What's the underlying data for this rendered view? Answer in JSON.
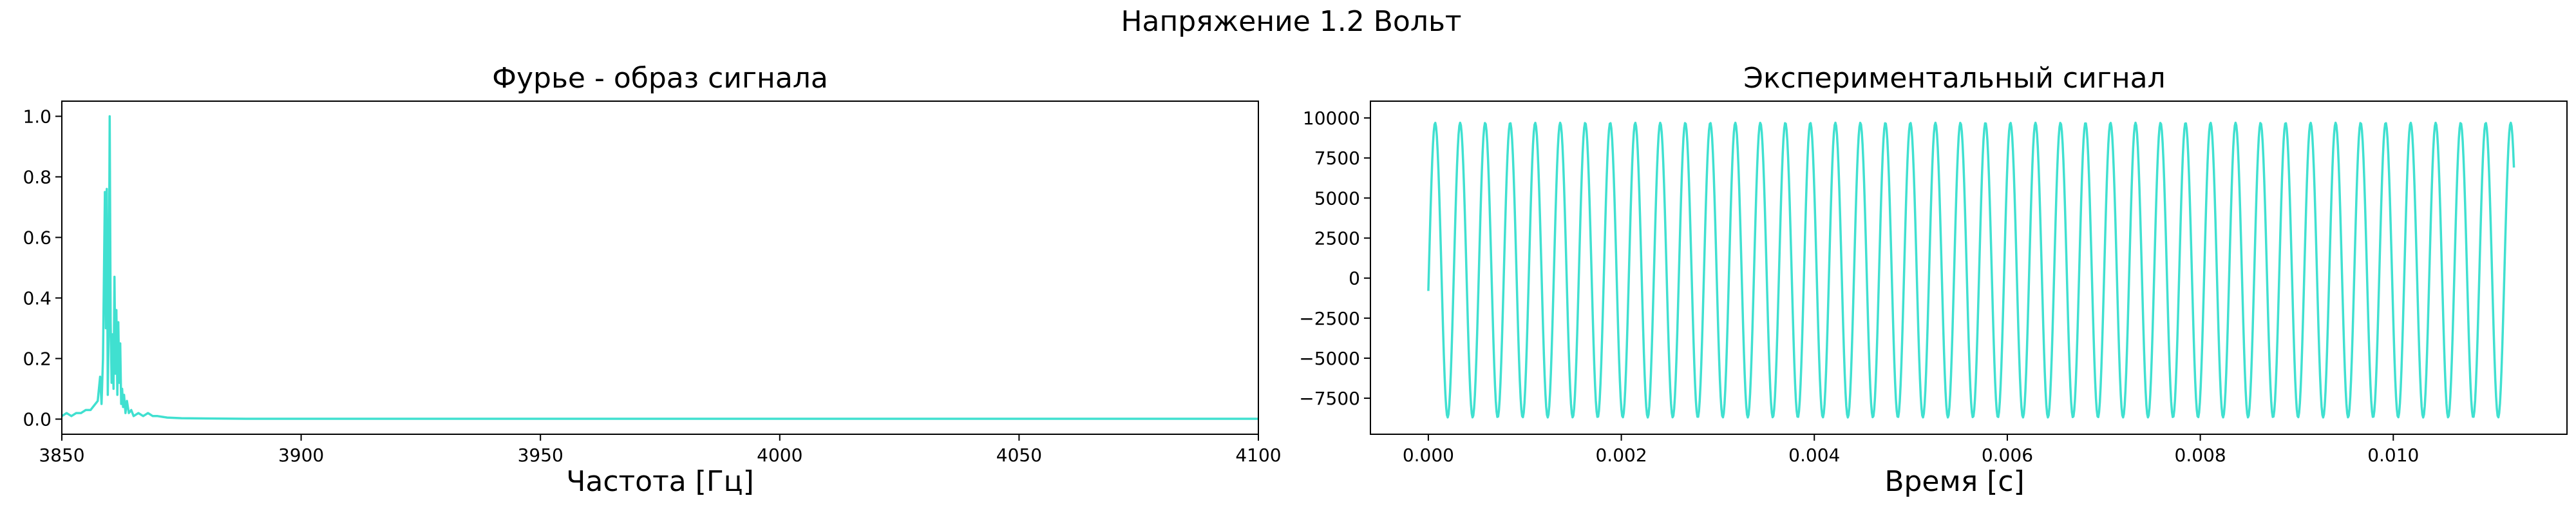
{
  "figure": {
    "title": "Напряжение 1.2 Вольт"
  },
  "colors": {
    "line": "#40e0d0",
    "axis": "#000000",
    "background": "#ffffff"
  },
  "chart_data": [
    {
      "type": "line",
      "title": "Фурье - образ сигнала",
      "xlabel": "Частота [Гц]",
      "ylabel": "",
      "xlim": [
        3850,
        4100
      ],
      "ylim": [
        -0.05,
        1.05
      ],
      "xticks": [
        3850,
        3900,
        3950,
        4000,
        4050,
        4100
      ],
      "xtick_labels": [
        "3850",
        "3900",
        "3950",
        "4000",
        "4050",
        "4100"
      ],
      "yticks": [
        0.0,
        0.2,
        0.4,
        0.6,
        0.8,
        1.0
      ],
      "ytick_labels": [
        "0.0",
        "0.2",
        "0.4",
        "0.6",
        "0.8",
        "1.0"
      ],
      "grid": false,
      "series": [
        {
          "x": [
            3850,
            3851,
            3852,
            3853,
            3854,
            3855,
            3856,
            3857,
            3857.5,
            3858,
            3858.3,
            3858.6,
            3859,
            3859.2,
            3859.4,
            3859.6,
            3859.8,
            3860,
            3860.2,
            3860.4,
            3860.6,
            3860.8,
            3861,
            3861.2,
            3861.4,
            3861.6,
            3861.8,
            3862,
            3862.2,
            3862.4,
            3862.6,
            3862.8,
            3863,
            3863.3,
            3863.6,
            3864,
            3864.5,
            3865,
            3866,
            3867,
            3868,
            3869,
            3870,
            3872,
            3875,
            3880,
            3890,
            3900,
            3950,
            4000,
            4050,
            4100
          ],
          "y": [
            0.01,
            0.02,
            0.01,
            0.02,
            0.02,
            0.03,
            0.03,
            0.05,
            0.06,
            0.14,
            0.05,
            0.2,
            0.75,
            0.3,
            0.76,
            0.08,
            0.3,
            1.0,
            0.32,
            0.12,
            0.28,
            0.1,
            0.47,
            0.15,
            0.36,
            0.08,
            0.32,
            0.12,
            0.25,
            0.05,
            0.1,
            0.04,
            0.08,
            0.02,
            0.06,
            0.02,
            0.03,
            0.01,
            0.02,
            0.01,
            0.02,
            0.01,
            0.01,
            0.005,
            0.003,
            0.002,
            0.001,
            0.001,
            0.001,
            0.001,
            0.001,
            0.001
          ]
        }
      ]
    },
    {
      "type": "line",
      "title": "Экспериментальный сигнал",
      "xlabel": "Время [с]",
      "ylabel": "",
      "xlim": [
        -0.0006,
        0.0118
      ],
      "ylim": [
        -9750,
        11050
      ],
      "xticks": [
        0.0,
        0.002,
        0.004,
        0.006,
        0.008,
        0.01
      ],
      "xtick_labels": [
        "0.000",
        "0.002",
        "0.004",
        "0.006",
        "0.008",
        "0.010"
      ],
      "yticks": [
        -7500,
        -5000,
        -2500,
        0,
        2500,
        5000,
        7500,
        10000
      ],
      "ytick_labels": [
        "−7500",
        "−5000",
        "−2500",
        "0",
        "2500",
        "5000",
        "7500",
        "10000"
      ],
      "grid": false,
      "signal": {
        "x_start": 0.0,
        "x_end": 0.01125,
        "cycles": 43.4,
        "max": 9700,
        "min": -8700,
        "start_value": -800,
        "end_value": -7700
      }
    }
  ]
}
